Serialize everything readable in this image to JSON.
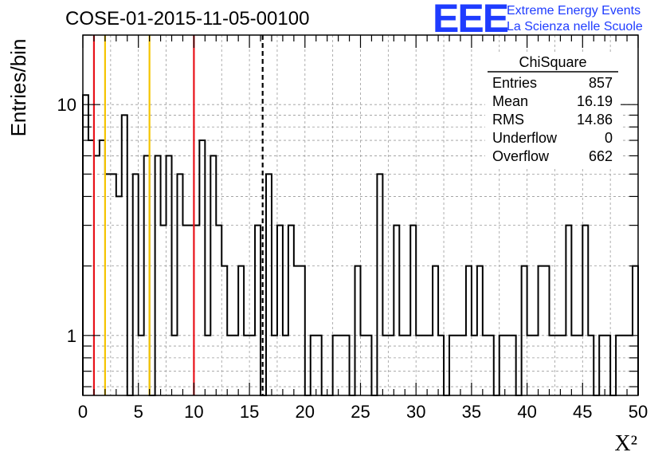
{
  "header": {
    "run_title": "COSE-01-2015-11-05-00100",
    "logo_mark": "EEE",
    "logo_line1": "Extreme Energy Events",
    "logo_line2": "La Scienza nelle Scuole",
    "logo_color": "#1f3cff"
  },
  "chart_data": {
    "type": "histogram",
    "title": "COSE-01-2015-11-05-00100",
    "xlabel": "X²",
    "ylabel": "Entries/bin",
    "xlim": [
      0,
      50
    ],
    "ylim": [
      0.55,
      20
    ],
    "yscale": "log",
    "bin_width": 0.5,
    "grid": true,
    "x_ticks": [
      0,
      5,
      10,
      15,
      20,
      25,
      30,
      35,
      40,
      45,
      50
    ],
    "y_ticks": [
      1,
      10
    ],
    "values": [
      11,
      7,
      6,
      7,
      5,
      5,
      4,
      9,
      0,
      5,
      1,
      6,
      0,
      6,
      3,
      6,
      1,
      5,
      3,
      3,
      3,
      7,
      1,
      6,
      3,
      2,
      1,
      1,
      2,
      1,
      1,
      3,
      0,
      5,
      1,
      3,
      1,
      3,
      2,
      2,
      0,
      1,
      1,
      0,
      0,
      1,
      1,
      1,
      0,
      2,
      1,
      1,
      0,
      5,
      1,
      1,
      3,
      1,
      1,
      3,
      1,
      1,
      1,
      2,
      1,
      0,
      1,
      1,
      1,
      2,
      1,
      2,
      1,
      1,
      0,
      1,
      1,
      1,
      0,
      2,
      1,
      1,
      2,
      2,
      1,
      1,
      1,
      3,
      1,
      1,
      3,
      1,
      0,
      1,
      1,
      0,
      1,
      1,
      1,
      2
    ],
    "vertical_lines": [
      {
        "x": 1,
        "color": "#e8121a",
        "style": "solid"
      },
      {
        "x": 2,
        "color": "#f5c400",
        "style": "solid"
      },
      {
        "x": 6,
        "color": "#f5c400",
        "style": "solid"
      },
      {
        "x": 10,
        "color": "#e8121a",
        "style": "solid"
      },
      {
        "x": 16.19,
        "color": "#000000",
        "style": "dashed"
      }
    ],
    "stats_box": {
      "title": "ChiSquare",
      "rows": [
        {
          "label": "Entries",
          "value": "857"
        },
        {
          "label": "Mean",
          "value": "16.19"
        },
        {
          "label": "RMS",
          "value": "14.86"
        },
        {
          "label": "Underflow",
          "value": "0"
        },
        {
          "label": "Overflow",
          "value": "662"
        }
      ]
    }
  }
}
